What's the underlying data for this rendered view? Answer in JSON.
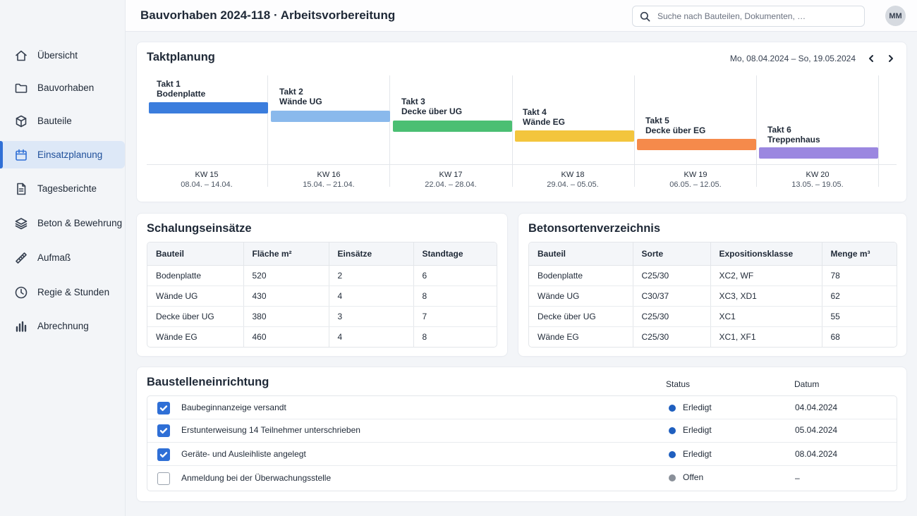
{
  "header": {
    "title": "Bauvorhaben 2024-118 · Arbeitsvorbereitung",
    "search_placeholder": "Suche nach Bauteilen, Dokumenten, …",
    "avatar_initials": "MM"
  },
  "sidebar": {
    "items": [
      {
        "label": "Übersicht",
        "icon": "home-icon",
        "active": false
      },
      {
        "label": "Bauvorhaben",
        "icon": "folder-icon",
        "active": false
      },
      {
        "label": "Bauteile",
        "icon": "cube-icon",
        "active": false
      },
      {
        "label": "Einsatzplanung",
        "icon": "calendar-icon",
        "active": true
      },
      {
        "label": "Tagesberichte",
        "icon": "document-icon",
        "active": false
      },
      {
        "label": "Beton & Bewehrung",
        "icon": "layers-icon",
        "active": false
      },
      {
        "label": "Aufmaß",
        "icon": "ruler-icon",
        "active": false
      },
      {
        "label": "Regie & Stunden",
        "icon": "clock-icon",
        "active": false
      },
      {
        "label": "Abrechnung",
        "icon": "bar-chart-icon",
        "active": false
      }
    ]
  },
  "takt": {
    "title": "Taktplanung",
    "range": "Mo, 08.04.2024 – So, 19.05.2024",
    "steps": [
      {
        "line1": "Takt 1",
        "line2": "Bodenplatte",
        "color": "#3b7ddd"
      },
      {
        "line1": "Takt 2",
        "line2": "Wände UG",
        "color": "#8ab9ec"
      },
      {
        "line1": "Takt 3",
        "line2": "Decke über UG",
        "color": "#4bbf73"
      },
      {
        "line1": "Takt 4",
        "line2": "Wände EG",
        "color": "#f3c53d"
      },
      {
        "line1": "Takt 5",
        "line2": "Decke über EG",
        "color": "#f58a4b"
      },
      {
        "line1": "Takt 6",
        "line2": "Treppenhaus",
        "color": "#9b87e0"
      }
    ],
    "weeks": [
      {
        "kw": "KW 15",
        "dates": "08.04. – 14.04."
      },
      {
        "kw": "KW 16",
        "dates": "15.04. – 21.04."
      },
      {
        "kw": "KW 17",
        "dates": "22.04. – 28.04."
      },
      {
        "kw": "KW 18",
        "dates": "29.04. – 05.05."
      },
      {
        "kw": "KW 19",
        "dates": "06.05. – 12.05."
      },
      {
        "kw": "KW 20",
        "dates": "13.05. – 19.05."
      }
    ]
  },
  "schalung": {
    "title": "Schalungseinsätze",
    "headers": [
      "Bauteil",
      "Fläche m²",
      "Einsätze",
      "Standtage"
    ],
    "rows": [
      [
        "Bodenplatte",
        "520",
        "2",
        "6"
      ],
      [
        "Wände UG",
        "430",
        "4",
        "8"
      ],
      [
        "Decke über UG",
        "380",
        "3",
        "7"
      ],
      [
        "Wände EG",
        "460",
        "4",
        "8"
      ]
    ]
  },
  "beton": {
    "title": "Betonsortenverzeichnis",
    "headers": [
      "Bauteil",
      "Sorte",
      "Expositionsklasse",
      "Menge m³"
    ],
    "rows": [
      [
        "Bodenplatte",
        "C25/30",
        "XC2, WF",
        "78"
      ],
      [
        "Wände UG",
        "C30/37",
        "XC3, XD1",
        "62"
      ],
      [
        "Decke über UG",
        "C25/30",
        "XC1",
        "55"
      ],
      [
        "Wände EG",
        "C25/30",
        "XC1, XF1",
        "68"
      ]
    ]
  },
  "einrichtung": {
    "title": "Baustelleneinrichtung",
    "status_header": "Status",
    "date_header": "Datum",
    "items": [
      {
        "label": "Baubeginnanzeige versandt",
        "checked": true,
        "status": "Erledigt",
        "status_color": "#1f5fbf",
        "date": "04.04.2024"
      },
      {
        "label": "Erstunterweisung 14 Teilnehmer unterschrieben",
        "checked": true,
        "status": "Erledigt",
        "status_color": "#1f5fbf",
        "date": "05.04.2024"
      },
      {
        "label": "Geräte- und Ausleihliste angelegt",
        "checked": true,
        "status": "Erledigt",
        "status_color": "#1f5fbf",
        "date": "08.04.2024"
      },
      {
        "label": "Anmeldung bei der Überwachungsstelle",
        "checked": false,
        "status": "Offen",
        "status_color": "#8a9099",
        "date": "–"
      }
    ]
  }
}
